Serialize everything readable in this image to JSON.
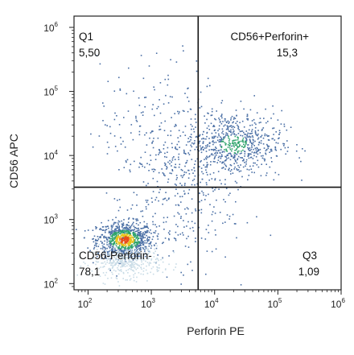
{
  "chart_data": {
    "type": "scatter",
    "title": "",
    "xlabel": "Perforin PE",
    "ylabel": "CD56 APC",
    "x_scale": "log",
    "y_scale": "log",
    "xlim": [
      60,
      1000000
    ],
    "ylim": [
      80,
      1500000
    ],
    "x_ticks": [
      {
        "base": "10",
        "exp": "2",
        "value": 100
      },
      {
        "base": "10",
        "exp": "3",
        "value": 1000
      },
      {
        "base": "10",
        "exp": "4",
        "value": 10000
      },
      {
        "base": "10",
        "exp": "5",
        "value": 100000
      },
      {
        "base": "10",
        "exp": "6",
        "value": 1000000
      }
    ],
    "y_ticks": [
      {
        "base": "10",
        "exp": "2",
        "value": 100
      },
      {
        "base": "10",
        "exp": "3",
        "value": 1000
      },
      {
        "base": "10",
        "exp": "4",
        "value": 10000
      },
      {
        "base": "10",
        "exp": "5",
        "value": 100000
      },
      {
        "base": "10",
        "exp": "6",
        "value": 1000000
      }
    ],
    "gate": {
      "x": 5500,
      "y": 3200
    },
    "quadrants": [
      {
        "position": "top-left",
        "name": "Q1",
        "percent": "5,50"
      },
      {
        "position": "top-right",
        "name": "CD56+Perforin+",
        "percent": "15,3"
      },
      {
        "position": "bottom-left",
        "name": "CD56-Perforin-",
        "percent": "78,1"
      },
      {
        "position": "bottom-right",
        "name": "Q3",
        "percent": "1,09"
      }
    ],
    "populations": [
      {
        "description_x": 380,
        "description_y": 480,
        "sx": 0.22,
        "sy": 0.14,
        "n": 900
      },
      {
        "description_x": 420,
        "description_y": 220,
        "sx": 0.28,
        "sy": 0.12,
        "n": 380
      },
      {
        "description_x": 20000,
        "description_y": 15000,
        "sx": 0.38,
        "sy": 0.26,
        "n": 700
      },
      {
        "description_x": 2500,
        "description_y": 1800,
        "sx": 0.45,
        "sy": 0.5,
        "n": 260
      },
      {
        "description_x": 1500,
        "description_y": 25000,
        "sx": 0.5,
        "sy": 0.55,
        "n": 220
      }
    ],
    "density_colors": [
      "#c8dbe6",
      "#4a6fa5",
      "#2ea36b",
      "#e8c21a",
      "#e84c1a"
    ],
    "grid": false,
    "legend": "none"
  }
}
